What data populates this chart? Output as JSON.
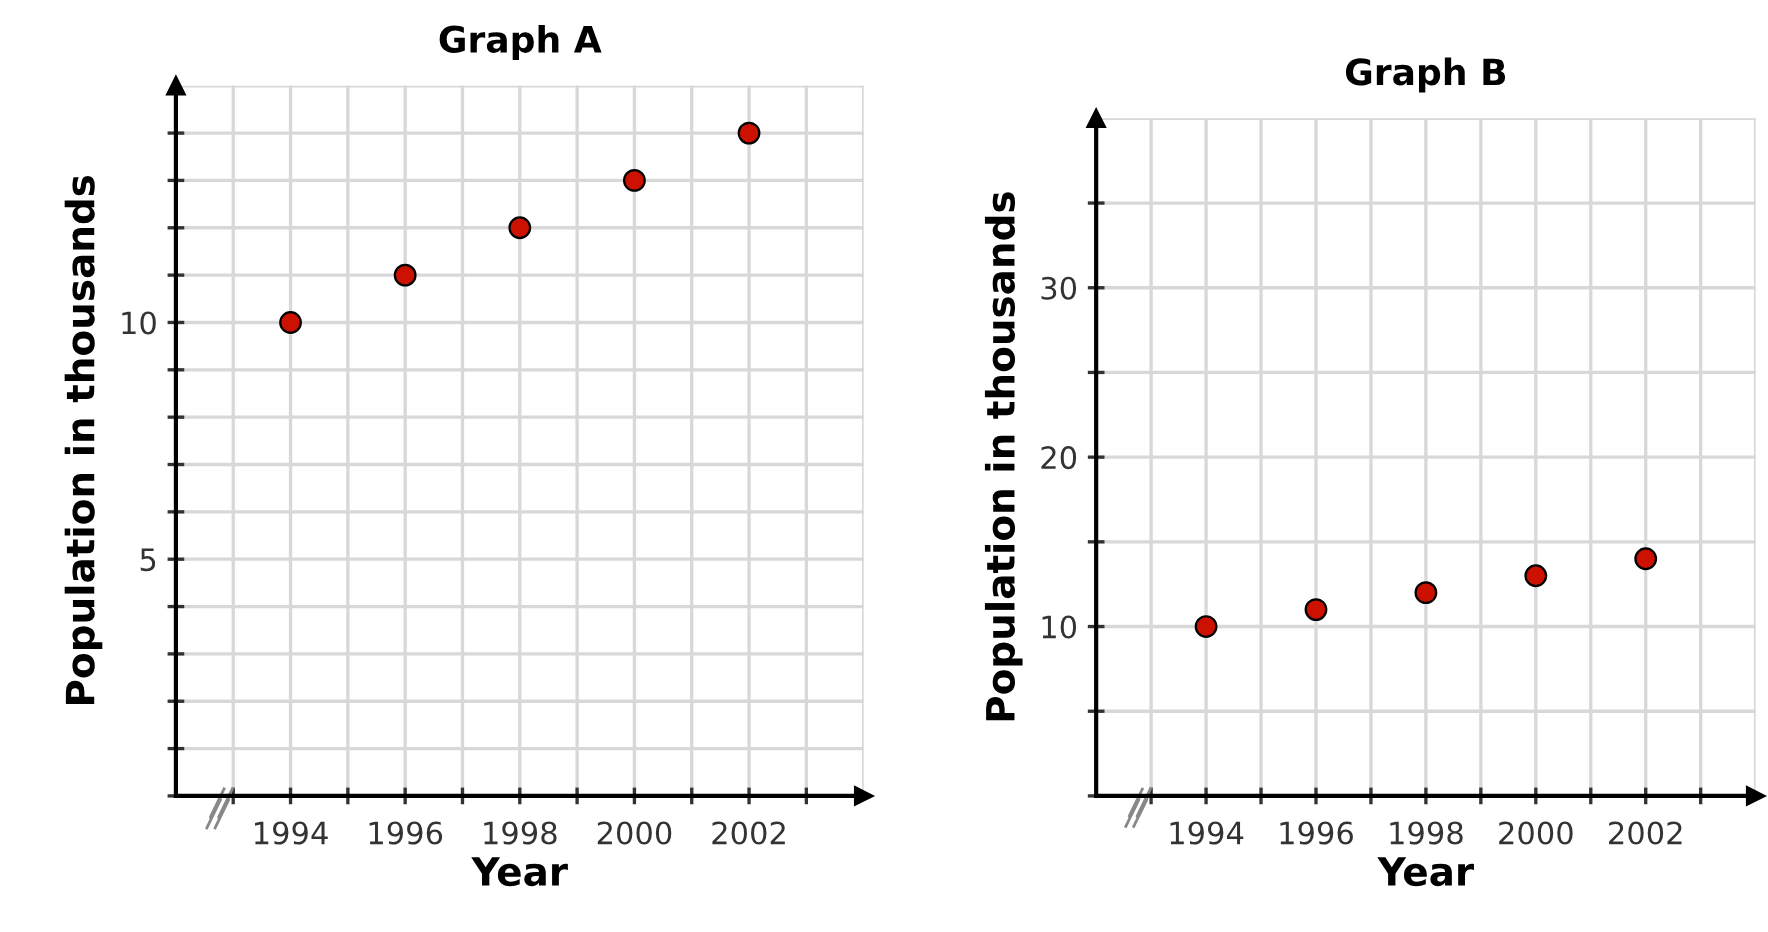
{
  "chart_data": [
    {
      "type": "scatter",
      "title": "Graph A",
      "xlabel": "Year",
      "ylabel": "Population in thousands",
      "x": [
        1994,
        1996,
        1998,
        2000,
        2002
      ],
      "series": [
        {
          "color": "#cc1100",
          "values": [
            10,
            11,
            12,
            13,
            14
          ]
        }
      ],
      "xlim": [
        1992,
        2004
      ],
      "xticks": [
        {
          "value": 1993,
          "label": null
        },
        1994,
        {
          "value": 1995,
          "label": null
        },
        1996,
        {
          "value": 1997,
          "label": null
        },
        1998,
        {
          "value": 1999,
          "label": null
        },
        2000,
        {
          "value": 2001,
          "label": null
        },
        2002,
        {
          "value": 2003,
          "label": null
        }
      ],
      "ylim": [
        0,
        15
      ],
      "yticks": [
        {
          "value": 0,
          "label": null
        },
        {
          "value": 1,
          "label": null
        },
        {
          "value": 2,
          "label": null
        },
        {
          "value": 3,
          "label": null
        },
        {
          "value": 4,
          "label": null
        },
        5,
        {
          "value": 6,
          "label": null
        },
        {
          "value": 7,
          "label": null
        },
        {
          "value": 8,
          "label": null
        },
        {
          "value": 9,
          "label": null
        },
        10,
        {
          "value": 11,
          "label": null
        },
        {
          "value": 12,
          "label": null
        },
        {
          "value": 13,
          "label": null
        },
        {
          "value": 14,
          "label": null
        }
      ],
      "grid": true,
      "marker": "circle",
      "legend": false
    },
    {
      "type": "scatter",
      "title": "Graph B",
      "xlabel": "Year",
      "ylabel": "Population in thousands",
      "x": [
        1994,
        1996,
        1998,
        2000,
        2002
      ],
      "series": [
        {
          "color": "#cc1100",
          "values": [
            10,
            11,
            12,
            13,
            14
          ]
        }
      ],
      "xlim": [
        1992,
        2004
      ],
      "xticks": [
        {
          "value": 1993,
          "label": null
        },
        1994,
        {
          "value": 1995,
          "label": null
        },
        1996,
        {
          "value": 1997,
          "label": null
        },
        1998,
        {
          "value": 1999,
          "label": null
        },
        2000,
        {
          "value": 2001,
          "label": null
        },
        2002,
        {
          "value": 2003,
          "label": null
        }
      ],
      "ylim": [
        0,
        40
      ],
      "yticks": [
        {
          "value": 0,
          "label": null
        },
        {
          "value": 5,
          "label": null
        },
        10,
        {
          "value": 15,
          "label": null
        },
        20,
        {
          "value": 25,
          "label": null
        },
        30,
        {
          "value": 35,
          "label": null
        }
      ],
      "grid": true,
      "marker": "circle",
      "legend": false
    }
  ]
}
